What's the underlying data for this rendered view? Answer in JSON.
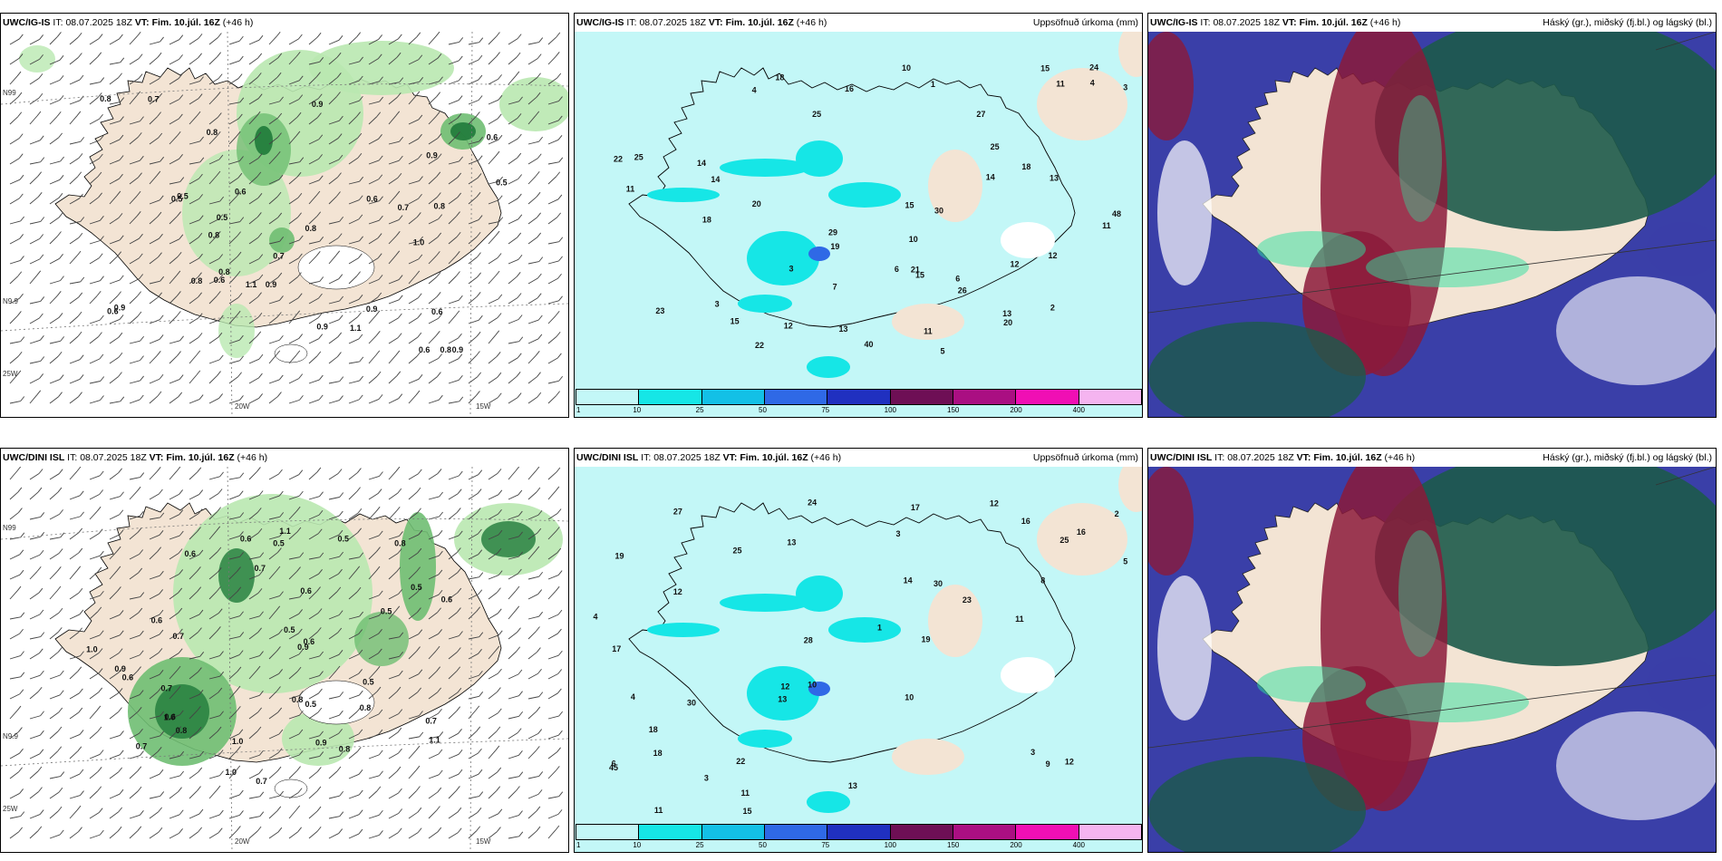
{
  "rows": [
    {
      "model": "UWC/IG-IS",
      "it_label": "IT:",
      "it_value": "08.07.2025 18Z",
      "vt_label": "VT:",
      "vt_value": "Fim. 10.júl. 16Z",
      "lead": "(+46 h)",
      "wind_labels": [
        "0.7",
        "0.5",
        "0.7",
        "1.0",
        "0.9",
        "0.8",
        "0.9",
        "0.8",
        "0.6",
        "0.7",
        "0.8",
        "0.9",
        "0.8",
        "0.6",
        "0.5",
        "0.9",
        "0.8",
        "0.5",
        "0.6",
        "0.6",
        "0.8",
        "0.5",
        "1.1",
        "0.8",
        "0.6",
        "0.6",
        "0.9",
        "0.9",
        "0.9",
        "0.6",
        "0.8",
        "1.1"
      ],
      "wind_label_color": "#111111",
      "precip_labels": [
        "5",
        "4",
        "3",
        "14",
        "18",
        "11",
        "11",
        "20",
        "19",
        "15",
        "23",
        "22",
        "29",
        "21",
        "14",
        "15",
        "11",
        "11",
        "12",
        "13",
        "13",
        "15",
        "22",
        "20",
        "30",
        "25",
        "18",
        "14",
        "40",
        "25",
        "26",
        "24",
        "27",
        "12",
        "18",
        "13",
        "10",
        "25",
        "48",
        "6",
        "16",
        "15",
        "3",
        "2",
        "1",
        "12",
        "6",
        "7",
        "10",
        "4",
        "3"
      ],
      "cloud_legend": "Háský (gr.), miðský (fj.bl.) og lágský (bl.)",
      "precip_title": "Uppsöfnuð úrkoma (mm)"
    },
    {
      "model": "UWC/DINI ISL",
      "it_label": "IT:",
      "it_value": "08.07.2025 18Z",
      "vt_label": "VT:",
      "vt_value": "Fim. 10.júl. 16Z",
      "lead": "(+46 h)",
      "wind_labels": [
        "0.7",
        "0.8",
        "0.6",
        "0.5",
        "0.5",
        "0.7",
        "0.7",
        "0.6",
        "0.6",
        "0.5",
        "0.9",
        "1.1",
        "0.8",
        "0.9",
        "0.7",
        "0.6",
        "1.1",
        "1.0",
        "1.0",
        "1.0",
        "0.8",
        "0.5",
        "0.7",
        "0.6",
        "0.5",
        "1.0",
        "0.6",
        "0.5",
        "0.6",
        "0.5",
        "0.6",
        "0.8",
        "0.9",
        "0.8",
        "0.7"
      ],
      "wind_label_color": "#111111",
      "precip_labels": [
        "3",
        "17",
        "5",
        "13",
        "11",
        "19",
        "27",
        "28",
        "30",
        "25",
        "15",
        "18",
        "45",
        "22",
        "16",
        "11",
        "23",
        "17",
        "25",
        "12",
        "12",
        "19",
        "30",
        "13",
        "13",
        "16",
        "12",
        "24",
        "10",
        "18",
        "11",
        "4",
        "4",
        "3",
        "6",
        "10",
        "9",
        "8",
        "2",
        "1",
        "12",
        "14",
        "3"
      ],
      "cloud_legend": "Háský (gr.), miðský (fj.bl.) og lágský (bl.)",
      "precip_title": "Uppsöfnuð úrkoma (mm)"
    }
  ],
  "axis_labels": {
    "lat_top": "N99",
    "lat_mid": "N9.9",
    "lon_20w": "20W",
    "lon_15w": "15W",
    "lat_25w": "25W"
  },
  "colorbar": {
    "ticks": [
      "1",
      "10",
      "25",
      "50",
      "75",
      "100",
      "150",
      "200",
      "400"
    ],
    "colors": [
      "#c3f7f7",
      "#16e6e6",
      "#13c0e6",
      "#2f69e6",
      "#2030c0",
      "#6e0f55",
      "#aa0f82",
      "#f00fb4",
      "#f5b4f0"
    ]
  },
  "palette": {
    "land": "#f3e4d4",
    "precip_light": "#c3f7f7",
    "precip_mid": "#16e6e6",
    "precip_blue": "#2f69e6",
    "wind_green_light": "#b9e8b0",
    "wind_green_mid": "#6fbe72",
    "wind_green_dark": "#1f7a3a",
    "cloud_high": "#1d5a4a",
    "cloud_mid": "#3a3fa8",
    "cloud_low": "#8b1a3a",
    "cloud_bright": "#2de0a0"
  }
}
